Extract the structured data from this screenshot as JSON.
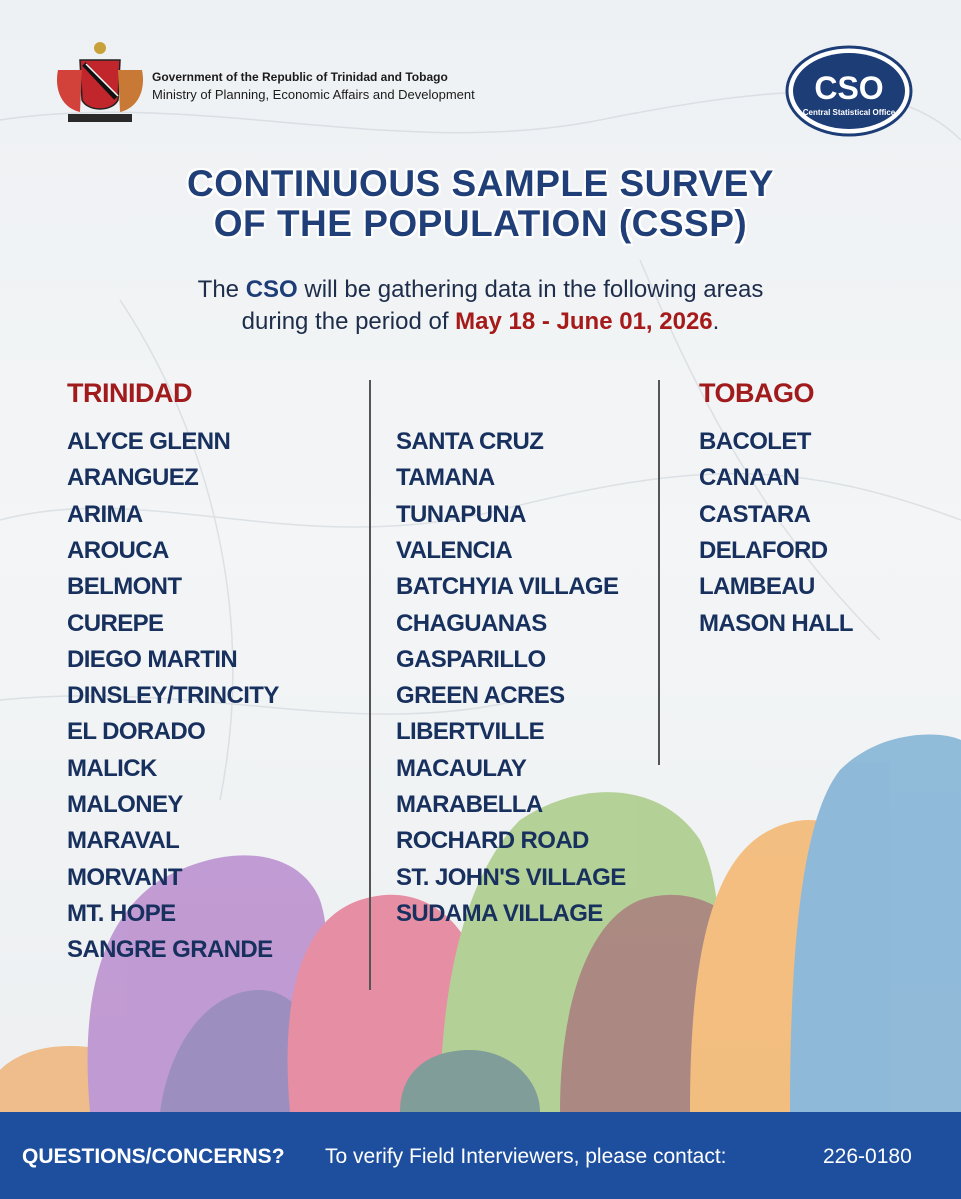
{
  "header": {
    "government": "Government of the Republic of Trinidad and Tobago",
    "ministry": "Ministry of Planning, Economic Affairs and Development",
    "logo_text": "CSO",
    "logo_caption": "Central Statistical Office"
  },
  "title": [
    "CONTINUOUS SAMPLE SURVEY",
    "OF THE POPULATION (CSSP)"
  ],
  "intro": {
    "line1": [
      "The ",
      "CSO",
      " will be gathering data in the following areas"
    ],
    "line2": [
      "during the period of ",
      "May 18 - June 01, 2026",
      "."
    ]
  },
  "columns": [
    {
      "heading": "TRINIDAD",
      "items": [
        "ALYCE GLENN",
        "ARANGUEZ",
        "ARIMA",
        "AROUCA",
        "BELMONT",
        "CUREPE",
        "DIEGO MARTIN",
        "DINSLEY/TRINCITY",
        "EL DORADO",
        "MALICK",
        "MALONEY",
        "MARAVAL",
        "MORVANT",
        "MT. HOPE",
        "SANGRE GRANDE"
      ]
    },
    {
      "items": [
        "SANTA CRUZ",
        "TAMANA",
        "TUNAPUNA",
        "VALENCIA",
        "BATCHYIA VILLAGE",
        "CHAGUANAS",
        "GASPARILLO",
        "GREEN ACRES",
        "LIBERTVILLE",
        "MACAULAY",
        "MARABELLA",
        "ROCHARD ROAD",
        "ST. JOHN'S VILLAGE",
        "SUDAMA VILLAGE"
      ]
    },
    {
      "heading": "TOBAGO",
      "items": [
        "BACOLET",
        "CANAAN",
        "CASTARA",
        "DELAFORD",
        "LAMBEAU",
        "MASON HALL"
      ]
    }
  ],
  "footer": {
    "question": "QUESTIONS/CONCERNS?",
    "contact_text": "To verify Field Interviewers, please contact:",
    "phone": "226-0180"
  }
}
